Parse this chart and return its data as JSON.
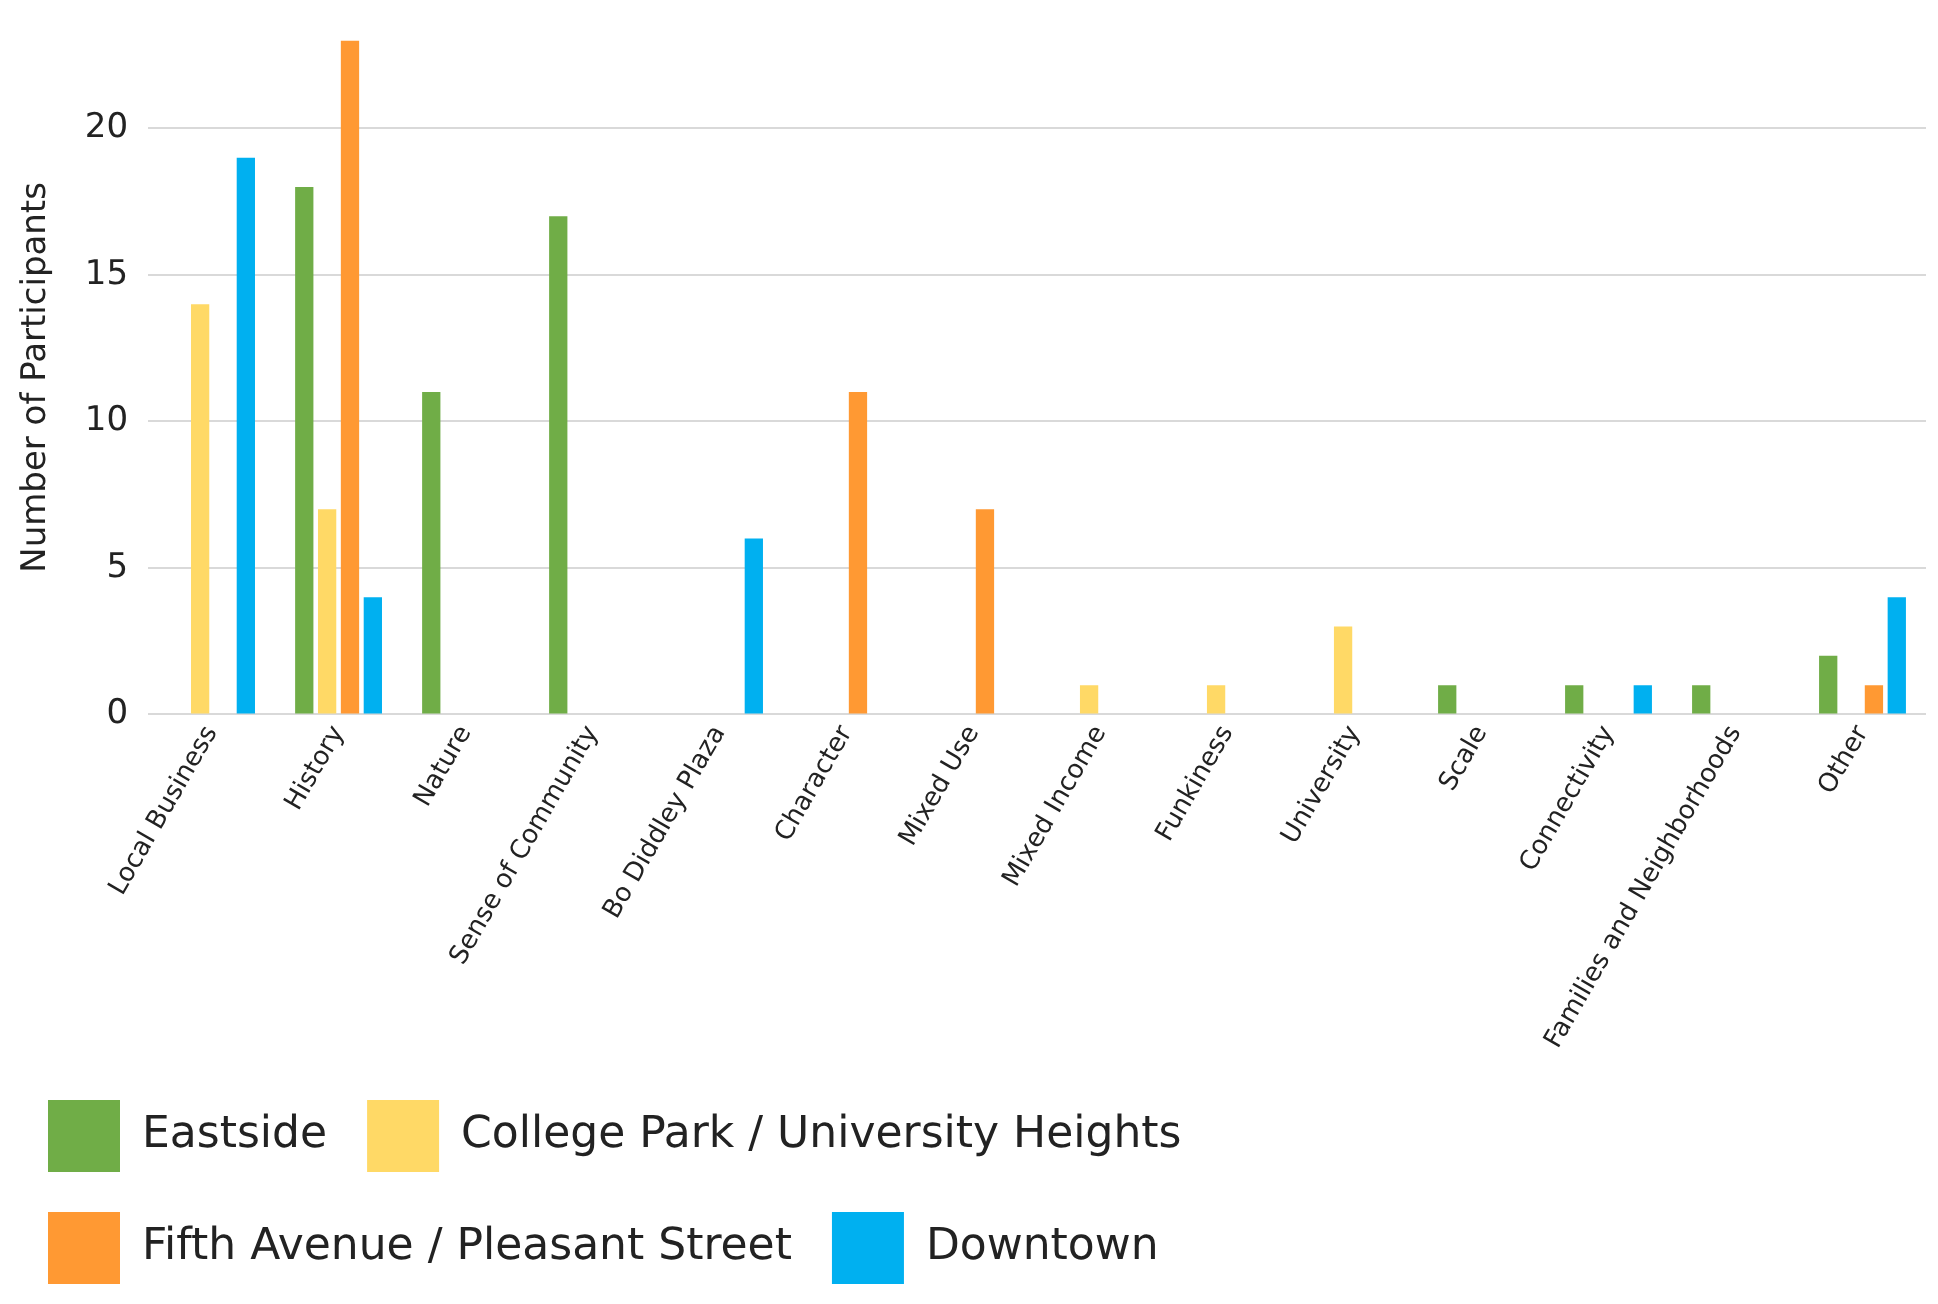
{
  "chart_data": {
    "type": "bar",
    "ylabel": "Number of Participants",
    "categories": [
      "Local Business",
      "History",
      "Nature",
      "Sense of Community",
      "Bo Diddley Plaza",
      "Character",
      "Mixed Use",
      "Mixed Income",
      "Funkiness",
      "University",
      "Scale",
      "Connectivity",
      "Families and Neighborhoods",
      "Other"
    ],
    "series": [
      {
        "name": "Eastside",
        "color": "#70ad47",
        "values": [
          null,
          18,
          11,
          17,
          null,
          null,
          null,
          null,
          null,
          null,
          1,
          1,
          1,
          2
        ]
      },
      {
        "name": "College Park / University Heights",
        "color": "#ffd966",
        "values": [
          14,
          7,
          null,
          null,
          null,
          null,
          null,
          1,
          1,
          3,
          null,
          null,
          null,
          null
        ]
      },
      {
        "name": "Fifth Avenue / Pleasant Street",
        "color": "#ff9933",
        "values": [
          null,
          23,
          null,
          null,
          null,
          11,
          7,
          null,
          null,
          null,
          null,
          null,
          null,
          1
        ]
      },
      {
        "name": "Downtown",
        "color": "#00b0f0",
        "values": [
          19,
          4,
          null,
          null,
          6,
          null,
          null,
          null,
          null,
          null,
          null,
          1,
          null,
          4
        ]
      }
    ],
    "ylim": [
      0,
      23
    ],
    "yticks": [
      0,
      5,
      10,
      15,
      20
    ],
    "grid": "y",
    "legend": "bottom"
  }
}
